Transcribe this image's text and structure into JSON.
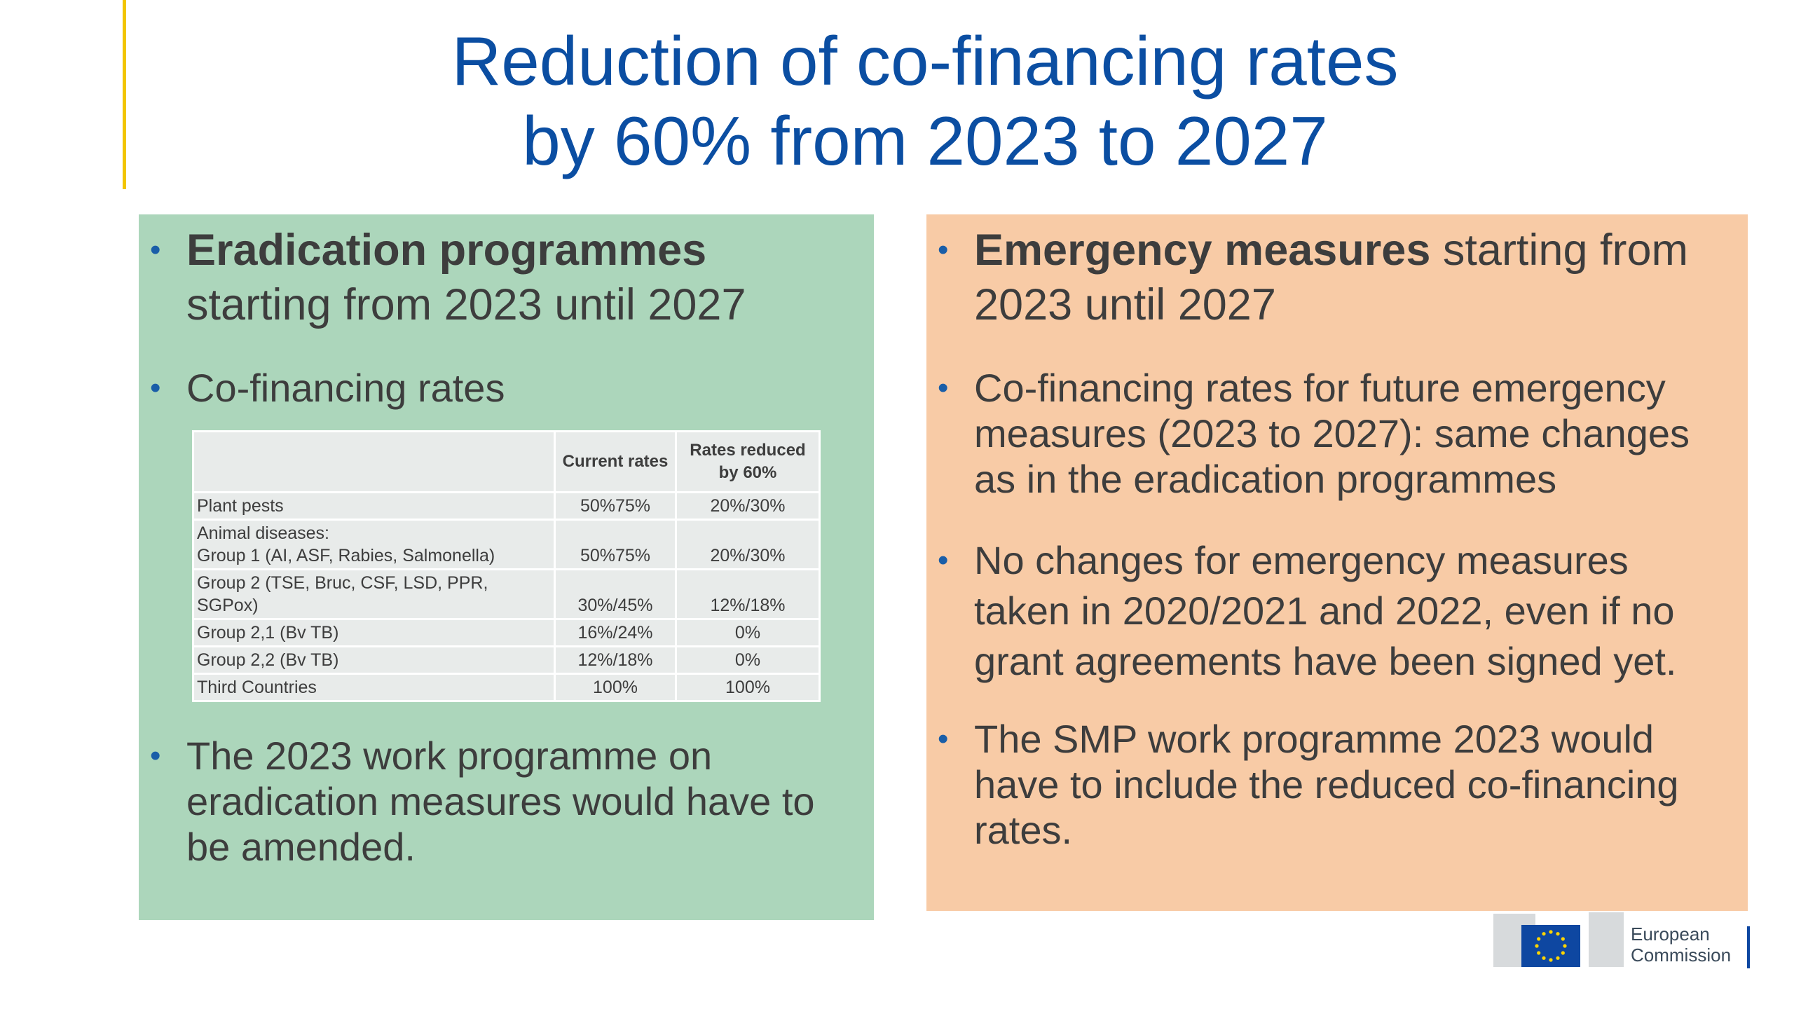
{
  "header": {
    "title_lines": [
      "Reduction of co-financing rates",
      "by 60% from 2023 to 2027"
    ]
  },
  "left_panel": {
    "bullets": [
      {
        "bold": "Eradication programmes",
        "rest": "starting from 2023 until 2027"
      },
      {
        "text": "Co-financing rates"
      },
      {
        "text": "The 2023 work programme on eradication measures would have to be amended."
      }
    ],
    "table": {
      "header": [
        "Current rates",
        "Rates reduced by 60%"
      ],
      "rows": [
        [
          "Plant pests",
          "50%75%",
          "20%/30%"
        ],
        [
          "Animal diseases:\nGroup 1 (AI, ASF, Rabies, Salmonella)",
          "50%75%",
          "20%/30%"
        ],
        [
          "Group 2 (TSE, Bruc, CSF, LSD, PPR, SGPox)",
          "30%/45%",
          "12%/18%"
        ],
        [
          "Group 2,1 (Bv TB)",
          "16%/24%",
          "0%"
        ],
        [
          "Group 2,2 (Bv TB)",
          "12%/18%",
          "0%"
        ],
        [
          "Third Countries",
          "100%",
          "100%"
        ]
      ]
    }
  },
  "right_panel": {
    "bullets": [
      {
        "bold": "Emergency measures",
        "rest": "starting from 2023 until 2027"
      },
      {
        "text": "Co-financing rates for future emergency measures (2023 to 2027): same changes as in the eradication programmes"
      },
      {
        "text": "No changes for emergency measures taken in 2020/2021 and 2022, even if no grant agreements have been signed yet."
      },
      {
        "text": "The SMP work programme 2023 would have to include the reduced co-financing rates."
      }
    ]
  },
  "logo": {
    "line1": "European",
    "line2": "Commission"
  }
}
